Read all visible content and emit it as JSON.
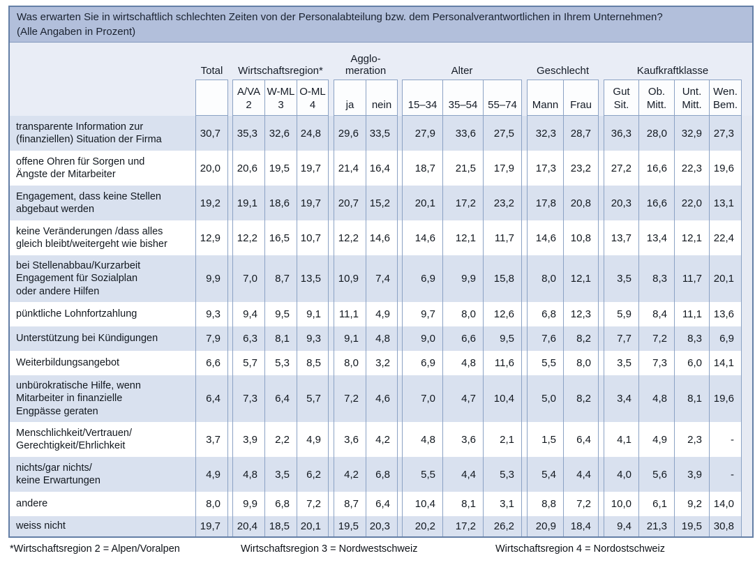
{
  "colors": {
    "title-bg": "#b2bfdb",
    "header-bg": "#e9edf6",
    "stripe": "#d9e1ef",
    "grid-line": "#8ba2c4",
    "outer-border": "#647fa6",
    "strip-bg": "#e6eaf3"
  },
  "chart_data": {
    "type": "table",
    "title": "Was erwarten Sie in wirtschaftlich schlechten Zeiten von der Personalabteilung bzw. dem Personalverantwortlichen in Ihrem Unternehmen?",
    "note": "(Alle Angaben in Prozent)",
    "column_groups": [
      {
        "label": "Total",
        "columns": [
          ""
        ]
      },
      {
        "label": "Wirtschaftsregion*",
        "columns": [
          "A/VA\n2",
          "W-ML\n3",
          "O-ML\n4"
        ]
      },
      {
        "label": "Agglo-\nmeration",
        "columns": [
          "ja",
          "nein"
        ]
      },
      {
        "label": "Alter",
        "columns": [
          "15–34",
          "35–54",
          "55–74"
        ]
      },
      {
        "label": "Geschlecht",
        "columns": [
          "Mann",
          "Frau"
        ]
      },
      {
        "label": "Kaufkraftklasse",
        "columns": [
          "Gut\nSit.",
          "Ob.\nMitt.",
          "Unt.\nMitt.",
          "Wen.\nBem."
        ]
      }
    ],
    "rows": [
      {
        "label": "transparente Information zur\n(finanziellen) Situation der Firma",
        "values": [
          "30,7",
          "35,3",
          "32,6",
          "24,8",
          "29,6",
          "33,5",
          "27,9",
          "33,6",
          "27,5",
          "32,3",
          "28,7",
          "36,3",
          "28,0",
          "32,9",
          "27,3"
        ]
      },
      {
        "label": "offene Ohren für Sorgen und\nÄngste der Mitarbeiter",
        "values": [
          "20,0",
          "20,6",
          "19,5",
          "19,7",
          "21,4",
          "16,4",
          "18,7",
          "21,5",
          "17,9",
          "17,3",
          "23,2",
          "27,2",
          "16,6",
          "22,3",
          "19,6"
        ]
      },
      {
        "label": "Engagement, dass keine Stellen\nabgebaut werden",
        "values": [
          "19,2",
          "19,1",
          "18,6",
          "19,7",
          "20,7",
          "15,2",
          "20,1",
          "17,2",
          "23,2",
          "17,8",
          "20,8",
          "20,3",
          "16,6",
          "22,0",
          "13,1"
        ]
      },
      {
        "label": "keine Veränderungen /dass alles\ngleich bleibt/weitergeht wie bisher",
        "values": [
          "12,9",
          "12,2",
          "16,5",
          "10,7",
          "12,2",
          "14,6",
          "14,6",
          "12,1",
          "11,7",
          "14,6",
          "10,8",
          "13,7",
          "13,4",
          "12,1",
          "22,4"
        ]
      },
      {
        "label": "bei Stellenabbau/Kurzarbeit\nEngagement für Sozialplan\noder andere Hilfen",
        "values": [
          "9,9",
          "7,0",
          "8,7",
          "13,5",
          "10,9",
          "7,4",
          "6,9",
          "9,9",
          "15,8",
          "8,0",
          "12,1",
          "3,5",
          "8,3",
          "11,7",
          "20,1"
        ]
      },
      {
        "label": "pünktliche Lohnfortzahlung",
        "values": [
          "9,3",
          "9,4",
          "9,5",
          "9,1",
          "11,1",
          "4,9",
          "9,7",
          "8,0",
          "12,6",
          "6,8",
          "12,3",
          "5,9",
          "8,4",
          "11,1",
          "13,6"
        ]
      },
      {
        "label": "Unterstützung bei Kündigungen",
        "values": [
          "7,9",
          "6,3",
          "8,1",
          "9,3",
          "9,1",
          "4,8",
          "9,0",
          "6,6",
          "9,5",
          "7,6",
          "8,2",
          "7,7",
          "7,2",
          "8,3",
          "6,9"
        ]
      },
      {
        "label": "Weiterbildungsangebot",
        "values": [
          "6,6",
          "5,7",
          "5,3",
          "8,5",
          "8,0",
          "3,2",
          "6,9",
          "4,8",
          "11,6",
          "5,5",
          "8,0",
          "3,5",
          "7,3",
          "6,0",
          "14,1"
        ]
      },
      {
        "label": "unbürokratische Hilfe, wenn\nMitarbeiter in finanzielle\nEngpässe geraten",
        "values": [
          "6,4",
          "7,3",
          "6,4",
          "5,7",
          "7,2",
          "4,6",
          "7,0",
          "4,7",
          "10,4",
          "5,0",
          "8,2",
          "3,4",
          "4,8",
          "8,1",
          "19,6"
        ]
      },
      {
        "label": "Menschlichkeit/Vertrauen/\nGerechtigkeit/Ehrlichkeit",
        "values": [
          "3,7",
          "3,9",
          "2,2",
          "4,9",
          "3,6",
          "4,2",
          "4,8",
          "3,6",
          "2,1",
          "1,5",
          "6,4",
          "4,1",
          "4,9",
          "2,3",
          "-"
        ]
      },
      {
        "label": "nichts/gar nichts/\nkeine Erwartungen",
        "values": [
          "4,9",
          "4,8",
          "3,5",
          "6,2",
          "4,2",
          "6,8",
          "5,5",
          "4,4",
          "5,3",
          "5,4",
          "4,4",
          "4,0",
          "5,6",
          "3,9",
          "-"
        ]
      },
      {
        "label": "andere",
        "values": [
          "8,0",
          "9,9",
          "6,8",
          "7,2",
          "8,7",
          "6,4",
          "10,4",
          "8,1",
          "3,1",
          "8,8",
          "7,2",
          "10,0",
          "6,1",
          "9,2",
          "14,0"
        ]
      },
      {
        "label": "weiss nicht",
        "values": [
          "19,7",
          "20,4",
          "18,5",
          "20,1",
          "19,5",
          "20,3",
          "20,2",
          "17,2",
          "26,2",
          "20,9",
          "18,4",
          "9,4",
          "21,3",
          "19,5",
          "30,8"
        ]
      }
    ],
    "footnotes": [
      "*Wirtschaftsregion 2 = Alpen/Voralpen",
      "Wirtschaftsregion 3 = Nordwestschweiz",
      "Wirtschaftsregion 4 = Nordostschweiz"
    ],
    "layout": {
      "striped_rows": true,
      "first_row_striped": true,
      "grid": true
    }
  }
}
